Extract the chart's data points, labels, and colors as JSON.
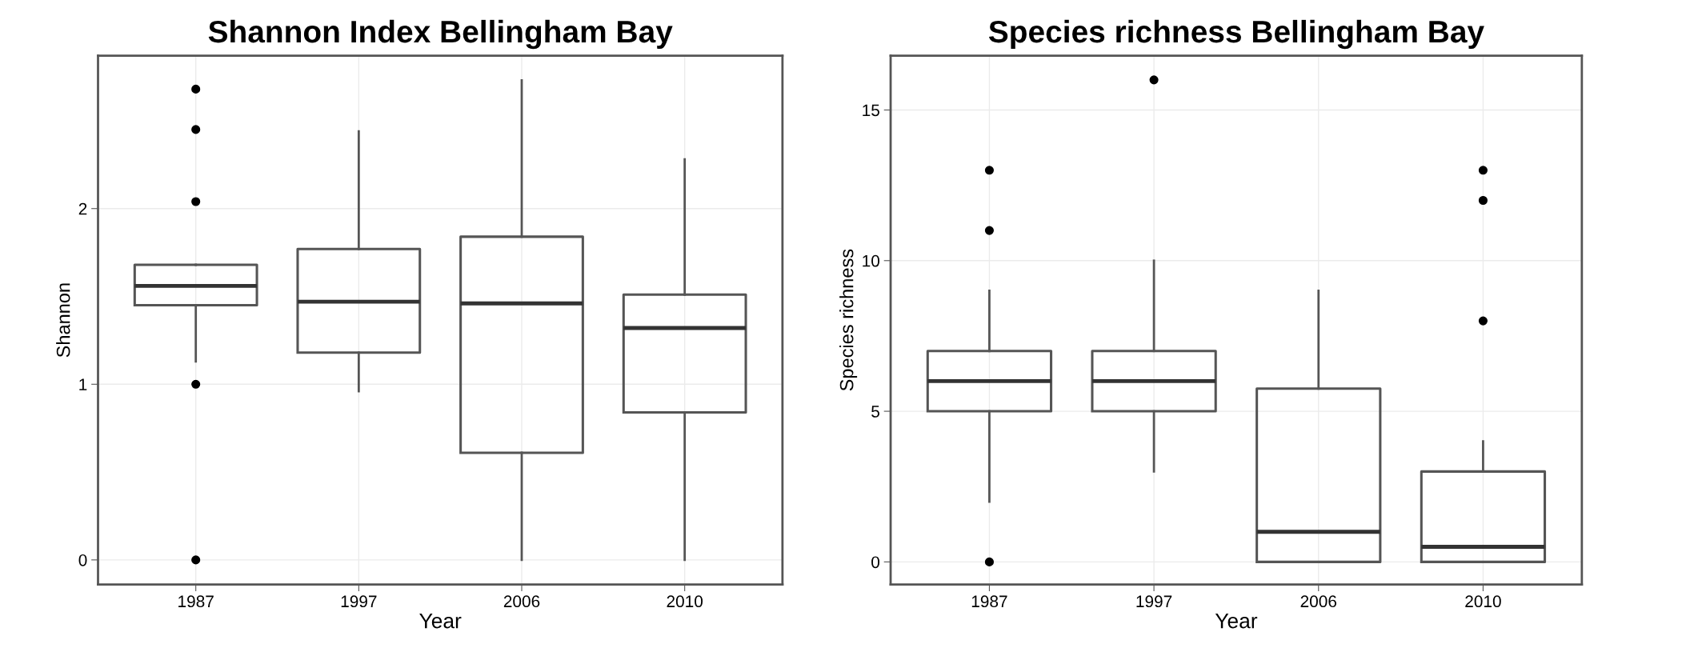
{
  "chart_data": [
    {
      "type": "box",
      "title": "Shannon Index Bellingham Bay",
      "xlabel": "Year",
      "ylabel": "Shannon",
      "categories": [
        "1987",
        "1997",
        "2006",
        "2010"
      ],
      "ylim": [
        -0.14,
        2.87
      ],
      "yticks": [
        0,
        1,
        2
      ],
      "grid": true,
      "color": "#555555",
      "boxes": [
        {
          "low": 1.13,
          "q1": 1.45,
          "median": 1.56,
          "q3": 1.68,
          "high": 1.68,
          "outliers": [
            0,
            1.0,
            2.04,
            2.45,
            2.68
          ]
        },
        {
          "low": 0.96,
          "q1": 1.18,
          "median": 1.47,
          "q3": 1.77,
          "high": 2.44
        },
        {
          "low": 0,
          "q1": 0.61,
          "median": 1.46,
          "q3": 1.84,
          "high": 2.73
        },
        {
          "low": 0,
          "q1": 0.84,
          "median": 1.32,
          "q3": 1.51,
          "high": 2.28
        }
      ]
    },
    {
      "type": "box",
      "title": "Species richness Bellingham Bay",
      "xlabel": "Year",
      "ylabel": "Species richness",
      "categories": [
        "1987",
        "1997",
        "2006",
        "2010"
      ],
      "ylim": [
        -0.75,
        16.8
      ],
      "yticks": [
        0,
        5,
        10,
        15
      ],
      "grid": true,
      "color": "#555555",
      "boxes": [
        {
          "low": 2,
          "q1": 5,
          "median": 6,
          "q3": 7,
          "high": 9,
          "outliers": [
            0,
            11,
            13
          ]
        },
        {
          "low": 3,
          "q1": 5,
          "median": 6,
          "q3": 7,
          "high": 10,
          "outliers": [
            16
          ]
        },
        {
          "low": 0,
          "q1": 0,
          "median": 1,
          "q3": 5.75,
          "high": 9
        },
        {
          "low": 0,
          "q1": 0,
          "median": 0.5,
          "q3": 3,
          "high": 4,
          "outliers": [
            8,
            12,
            13
          ]
        }
      ]
    }
  ]
}
